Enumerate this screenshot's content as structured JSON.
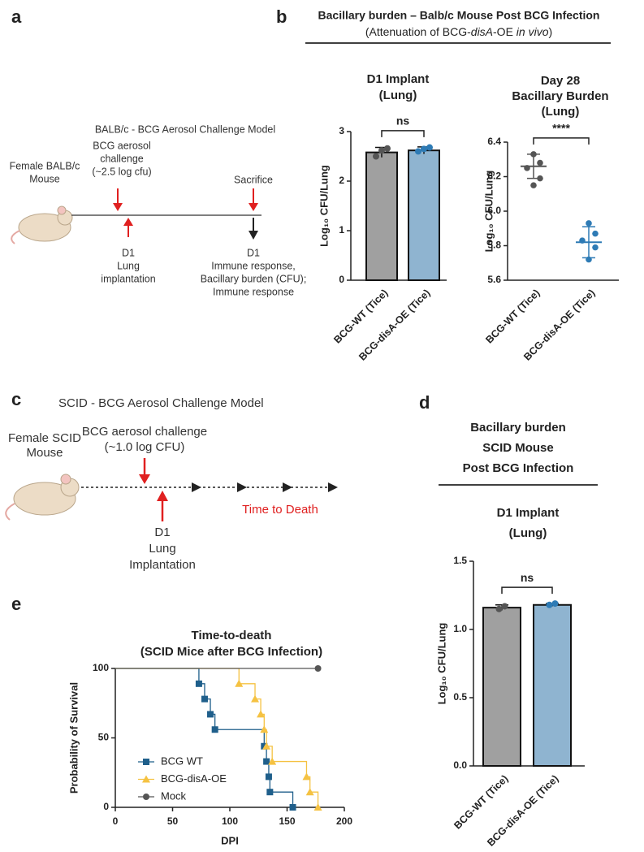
{
  "panel_labels": [
    "a",
    "b",
    "c",
    "d",
    "e"
  ],
  "panel_b_header": {
    "title": "Bacillary burden – Balb/c Mouse Post BCG Infection",
    "subtitle": [
      "(Attenuation of  BCG-",
      "disA",
      "-OE ",
      "in vivo",
      ")"
    ]
  },
  "panel_d_header": [
    "Bacillary burden",
    "SCID Mouse",
    "Post BCG Infection"
  ],
  "diagram_a": {
    "title": "BALB/c - BCG Aerosol Challenge Model",
    "mouse": [
      "Female BALB/c",
      "Mouse"
    ],
    "challenge": [
      "BCG aerosol",
      "challenge",
      "(~2.5 log cfu)"
    ],
    "implant": [
      "D1",
      "Lung",
      "implantation"
    ],
    "sacrifice": "Sacrifice",
    "endpoint": [
      "D1",
      "Immune response,",
      "Bacillary burden (CFU);",
      "Immune response"
    ]
  },
  "diagram_c": {
    "title": "SCID - BCG Aerosol Challenge Model",
    "mouse": [
      "Female SCID",
      "Mouse"
    ],
    "challenge": [
      "BCG aerosol challenge",
      "(~1.0 log CFU)"
    ],
    "implant": [
      "D1",
      "Lung",
      "Implantation"
    ],
    "outcome": "Time to Death"
  },
  "chart_data": [
    {
      "type": "bar",
      "title": [
        "D1 Implant",
        "(Lung)"
      ],
      "ylabel": "Log₁₀ CFU/Lung",
      "categories": [
        "BCG-WT (Tice)",
        "BCG-disA-OE (Tice)"
      ],
      "values": [
        2.58,
        2.62
      ],
      "errors": [
        0.1,
        0.07
      ],
      "points": [
        [
          2.5,
          2.62,
          2.66
        ],
        [
          2.6,
          2.65,
          2.68
        ]
      ],
      "colors": [
        "#a0a0a0",
        "#8fb4d0"
      ],
      "ylim": [
        0,
        3
      ],
      "yticks": [
        0,
        1,
        2,
        3
      ],
      "significance": "ns"
    },
    {
      "type": "scatter",
      "title": [
        "Day 28",
        "Bacillary Burden",
        "(Lung)"
      ],
      "ylabel": "Log₁₀ CFU/Lung",
      "categories": [
        "BCG-WT (Tice)",
        "BCG-disA-OE (Tice)"
      ],
      "points": [
        [
          6.33,
          6.28,
          6.25,
          6.19,
          6.15
        ],
        [
          5.93,
          5.87,
          5.83,
          5.79,
          5.72
        ]
      ],
      "means": [
        6.26,
        5.82
      ],
      "sds": [
        0.07,
        0.09
      ],
      "colors": [
        "#555555",
        "#2e7bb5"
      ],
      "ylim": [
        5.6,
        6.4
      ],
      "yticks": [
        5.6,
        5.8,
        {
          "value": 6,
          "label": "6.0"
        },
        6.2,
        6.4
      ],
      "significance": "****"
    },
    {
      "type": "bar",
      "title": [
        "D1 Implant",
        "(Lung)"
      ],
      "ylabel": "Log₁₀ CFU/Lung",
      "categories": [
        "BCG-WT (Tice)",
        "BCG-disA-OE (Tice)"
      ],
      "values": [
        1.16,
        1.18
      ],
      "errors": [
        0.02,
        0.01
      ],
      "points": [
        [
          1.15,
          1.17
        ],
        [
          1.18,
          1.19
        ]
      ],
      "colors": [
        "#a0a0a0",
        "#8fb4d0"
      ],
      "ylim": [
        0,
        1.5
      ],
      "yticks": [
        {
          "value": 0,
          "label": "0.0"
        },
        0.5,
        {
          "value": 1,
          "label": "1.0"
        },
        1.5
      ],
      "significance": "ns"
    },
    {
      "type": "line",
      "step": true,
      "title": [
        "Time-to-death",
        "(SCID Mice after BCG Infection)"
      ],
      "xlabel": "DPI",
      "ylabel": "Probability of Survival",
      "xlim": [
        0,
        200
      ],
      "xticks": [
        0,
        50,
        100,
        150,
        200
      ],
      "ylim": [
        0,
        100
      ],
      "yticks": [
        0,
        50,
        100
      ],
      "legend": "lower left",
      "series": [
        {
          "name": "BCG WT",
          "color": "#1f5f8b",
          "marker": "square",
          "x": [
            0,
            73,
            78,
            83,
            87,
            130,
            132,
            134,
            135,
            155
          ],
          "values": [
            100,
            89,
            78,
            67,
            56,
            44,
            33,
            22,
            11,
            0
          ]
        },
        {
          "name": "BCG-disA-OE",
          "color": "#f5c242",
          "marker": "triangle",
          "x": [
            0,
            108,
            122,
            127,
            130,
            132,
            137,
            167,
            170,
            177
          ],
          "values": [
            100,
            89,
            78,
            67,
            56,
            44,
            33,
            22,
            11,
            0
          ]
        },
        {
          "name": "Mock",
          "color": "#555555",
          "marker": "circle",
          "x": [
            0,
            177
          ],
          "values": [
            100,
            100
          ]
        }
      ]
    }
  ]
}
